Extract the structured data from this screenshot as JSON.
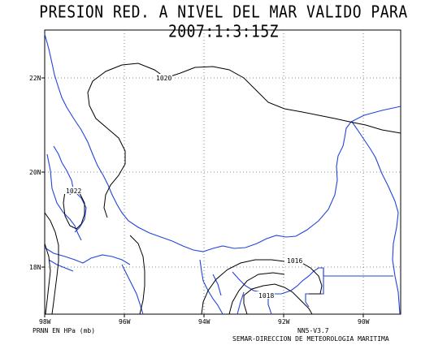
{
  "title": "PRESION RED. A NIVEL DEL MAR VALIDO PARA 2007:1:3:15Z",
  "x_ticks": [
    "98W",
    "96W",
    "94W",
    "92W",
    "90W"
  ],
  "y_ticks": [
    "22N",
    "20N",
    "18N"
  ],
  "contour_labels": [
    "1020",
    "1022",
    "1016",
    "1018"
  ],
  "footer_left": "PRNN EN HPa (mb)",
  "footer_right_1": "NN5-V3.7",
  "footer_right_2": "SEMAR-DIRECCION DE METEOROLOGIA MARITIMA",
  "colors": {
    "coast": "#2244dd",
    "isobar": "#000000",
    "grid": "#555555"
  }
}
